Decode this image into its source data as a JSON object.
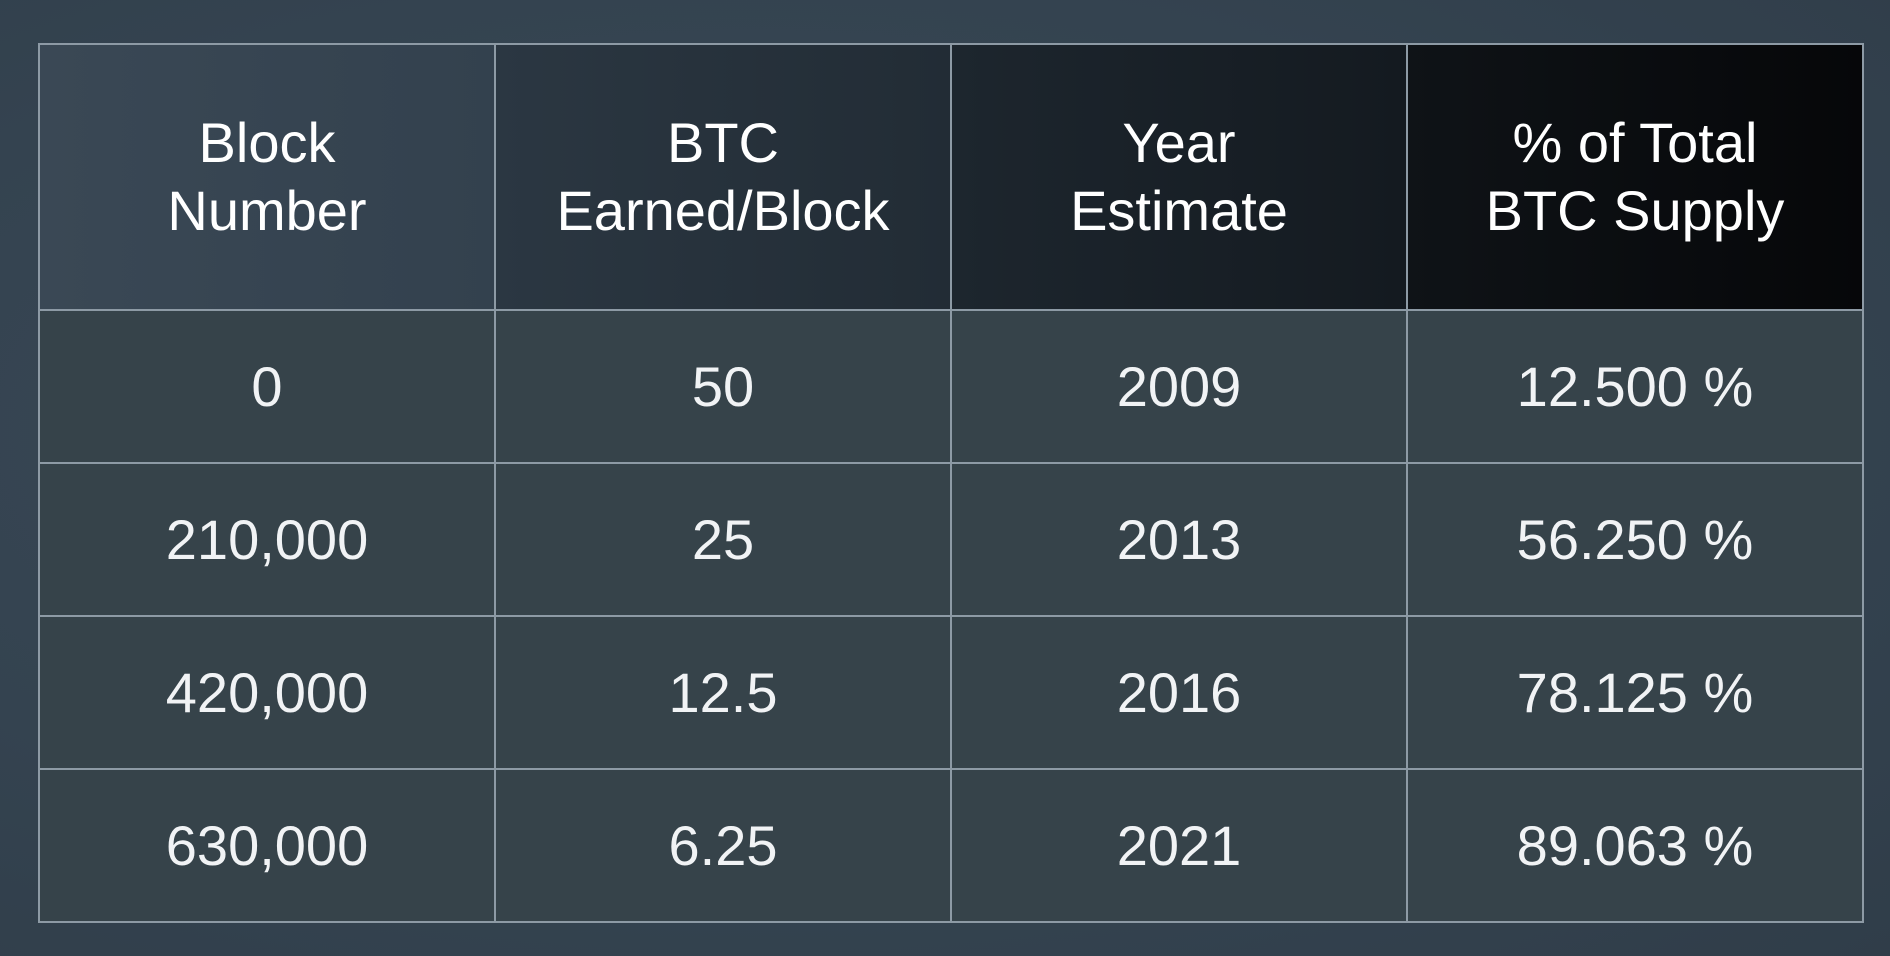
{
  "table": {
    "headers": [
      {
        "line1": "Block",
        "line2": "Number"
      },
      {
        "line1": "BTC",
        "line2": "Earned/Block"
      },
      {
        "line1": "Year",
        "line2": "Estimate"
      },
      {
        "line1": "% of Total",
        "line2": "BTC Supply"
      }
    ],
    "rows": [
      {
        "block": "0",
        "btc": "50",
        "year": "2009",
        "supply": "12.500 %"
      },
      {
        "block": "210,000",
        "btc": "25",
        "year": "2013",
        "supply": "56.250 %"
      },
      {
        "block": "420,000",
        "btc": "12.5",
        "year": "2016",
        "supply": "78.125 %"
      },
      {
        "block": "630,000",
        "btc": "6.25",
        "year": "2021",
        "supply": "89.063 %"
      }
    ]
  },
  "colors": {
    "background": "#364451",
    "cell_background": "#36434a",
    "grid_line": "#8d9aa5",
    "text": "#f1f3f5"
  }
}
